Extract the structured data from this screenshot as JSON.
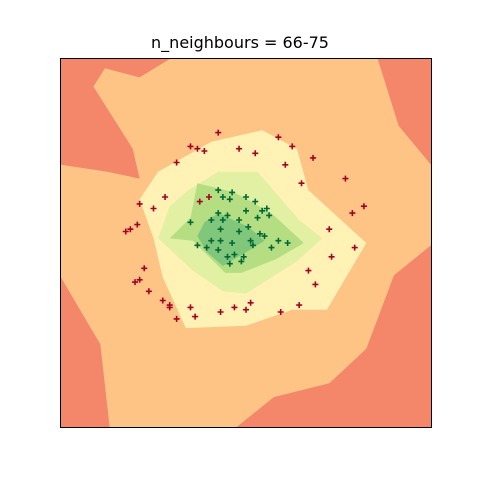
{
  "chart_data": {
    "type": "scatter",
    "title": "n_neighbours = 66-75",
    "xlabel": "",
    "ylabel": "",
    "xlim": [
      -4,
      4
    ],
    "ylim": [
      -4,
      4
    ],
    "grid": false,
    "contour_regions": [
      {
        "level": 1,
        "color": "#f4866a",
        "polygon": [
          [
            -4,
            4
          ],
          [
            4,
            4
          ],
          [
            4,
            -4
          ],
          [
            -4,
            -4
          ]
        ]
      },
      {
        "level": 2,
        "color": "#fdc486",
        "polygon": [
          [
            -1.65,
            4
          ],
          [
            2.85,
            4
          ],
          [
            3.3,
            2.55
          ],
          [
            4,
            1.7
          ],
          [
            4,
            -0.05
          ],
          [
            3.2,
            -0.7
          ],
          [
            2.6,
            -2.3
          ],
          [
            1.8,
            -3.05
          ],
          [
            0.6,
            -3.35
          ],
          [
            -0.2,
            -4
          ],
          [
            -2.95,
            -4
          ],
          [
            -3.15,
            -2.2
          ],
          [
            -4,
            -0.75
          ],
          [
            -4,
            1.7
          ],
          [
            -3.0,
            1.55
          ],
          [
            -2.3,
            1.4
          ],
          [
            -2.45,
            2.05
          ],
          [
            -3.3,
            3.4
          ],
          [
            -3.05,
            3.8
          ],
          [
            -2.3,
            3.6
          ]
        ]
      },
      {
        "level": 3,
        "color": "#fff2b4",
        "polygon": [
          [
            -0.75,
            2.2
          ],
          [
            0.35,
            2.45
          ],
          [
            1.1,
            2.05
          ],
          [
            1.35,
            1.15
          ],
          [
            2.6,
            0.0
          ],
          [
            1.75,
            -1.45
          ],
          [
            1.0,
            -1.45
          ],
          [
            0.0,
            -1.8
          ],
          [
            -1.3,
            -1.85
          ],
          [
            -1.8,
            -0.75
          ],
          [
            -2.0,
            0.1
          ],
          [
            -2.3,
            0.95
          ],
          [
            -1.9,
            1.55
          ]
        ]
      },
      {
        "level": 4,
        "color": "#e2f0a4",
        "polygon": [
          [
            -0.6,
            1.55
          ],
          [
            0.25,
            1.55
          ],
          [
            1.15,
            0.5
          ],
          [
            1.65,
            0.1
          ],
          [
            1.1,
            -0.4
          ],
          [
            0.0,
            -1.1
          ],
          [
            -0.5,
            -1.05
          ],
          [
            -1.15,
            -0.6
          ],
          [
            -1.9,
            0.1
          ],
          [
            -1.65,
            0.8
          ],
          [
            -1.25,
            1.15
          ]
        ]
      },
      {
        "level": 5,
        "color": "#b5de83",
        "polygon": [
          [
            -1.05,
            1.3
          ],
          [
            -0.25,
            1.1
          ],
          [
            0.55,
            0.65
          ],
          [
            1.25,
            0.0
          ],
          [
            0.65,
            -0.35
          ],
          [
            -0.1,
            -0.65
          ],
          [
            -0.45,
            -0.65
          ],
          [
            -1.15,
            0.05
          ],
          [
            -1.65,
            0.1
          ],
          [
            -1.2,
            0.55
          ]
        ]
      },
      {
        "level": 6,
        "color": "#80c77b",
        "polygon": [
          [
            -0.6,
            0.65
          ],
          [
            0.05,
            0.35
          ],
          [
            0.4,
            0.05
          ],
          [
            0.0,
            -0.2
          ],
          [
            -0.5,
            -0.5
          ],
          [
            -0.85,
            -0.2
          ],
          [
            -1.05,
            0.15
          ],
          [
            -0.9,
            0.45
          ]
        ]
      }
    ],
    "series": [
      {
        "marker": "+",
        "color": "#006837",
        "points": [
          [
            -0.6,
            1.15
          ],
          [
            -0.5,
            1.0
          ],
          [
            -0.35,
            0.95
          ],
          [
            -0.3,
            1.1
          ],
          [
            0.2,
            0.9
          ],
          [
            0.35,
            0.7
          ],
          [
            0.45,
            0.75
          ],
          [
            0.0,
            0.7
          ],
          [
            0.5,
            0.6
          ],
          [
            -0.4,
            0.6
          ],
          [
            -0.5,
            0.5
          ],
          [
            -0.75,
            0.5
          ],
          [
            -0.55,
            0.3
          ],
          [
            -0.15,
            0.25
          ],
          [
            0.05,
            0.35
          ],
          [
            0.3,
            0.2
          ],
          [
            0.4,
            0.15
          ],
          [
            -0.3,
            0.0
          ],
          [
            -0.55,
            0.05
          ],
          [
            -0.75,
            0.05
          ],
          [
            -0.85,
            -0.1
          ],
          [
            -0.6,
            -0.15
          ],
          [
            -0.4,
            -0.3
          ],
          [
            -0.25,
            -0.25
          ],
          [
            0.15,
            -0.05
          ],
          [
            0.55,
            -0.1
          ],
          [
            0.7,
            0.05
          ],
          [
            0.9,
            0.0
          ],
          [
            -0.1,
            -0.4
          ],
          [
            -0.35,
            -0.45
          ],
          [
            -1.05,
            -0.05
          ],
          [
            -0.05,
            -0.3
          ],
          [
            0.1,
            0.05
          ],
          [
            -0.6,
            0.65
          ],
          [
            0.25,
            0.55
          ],
          [
            -0.15,
            0.5
          ],
          [
            -1.2,
            0.45
          ],
          [
            0.0,
            1.0
          ]
        ]
      },
      {
        "marker": "+",
        "color": "#a50026",
        "points": [
          [
            -1.2,
            2.1
          ],
          [
            -1.05,
            2.05
          ],
          [
            -0.15,
            2.05
          ],
          [
            0.2,
            1.95
          ],
          [
            0.7,
            2.3
          ],
          [
            1.0,
            2.1
          ],
          [
            -0.6,
            2.4
          ],
          [
            -0.9,
            2.0
          ],
          [
            -1.5,
            1.75
          ],
          [
            -1.75,
            1.0
          ],
          [
            -2.0,
            0.75
          ],
          [
            -2.3,
            0.85
          ],
          [
            -2.5,
            0.3
          ],
          [
            -2.2,
            -0.55
          ],
          [
            -2.3,
            -0.8
          ],
          [
            -2.1,
            -1.05
          ],
          [
            -1.8,
            -1.25
          ],
          [
            -1.65,
            -1.35
          ],
          [
            -1.2,
            -1.4
          ],
          [
            -1.1,
            -1.6
          ],
          [
            -0.55,
            -1.5
          ],
          [
            -0.25,
            -1.4
          ],
          [
            0.0,
            -1.45
          ],
          [
            0.1,
            -1.3
          ],
          [
            0.75,
            -1.5
          ],
          [
            1.15,
            -1.35
          ],
          [
            1.35,
            -0.6
          ],
          [
            1.5,
            -0.9
          ],
          [
            1.85,
            -0.3
          ],
          [
            1.8,
            0.3
          ],
          [
            2.15,
            1.4
          ],
          [
            2.3,
            0.65
          ],
          [
            2.55,
            0.8
          ],
          [
            2.35,
            -0.1
          ],
          [
            1.45,
            1.85
          ],
          [
            1.2,
            1.3
          ],
          [
            -2.4,
            -0.85
          ],
          [
            -2.6,
            0.25
          ],
          [
            -2.35,
            0.4
          ],
          [
            -1.65,
            -1.4
          ],
          [
            -0.8,
            1.0
          ],
          [
            0.85,
            1.7
          ],
          [
            -1.0,
            0.9
          ],
          [
            -1.5,
            -1.65
          ]
        ]
      }
    ]
  }
}
